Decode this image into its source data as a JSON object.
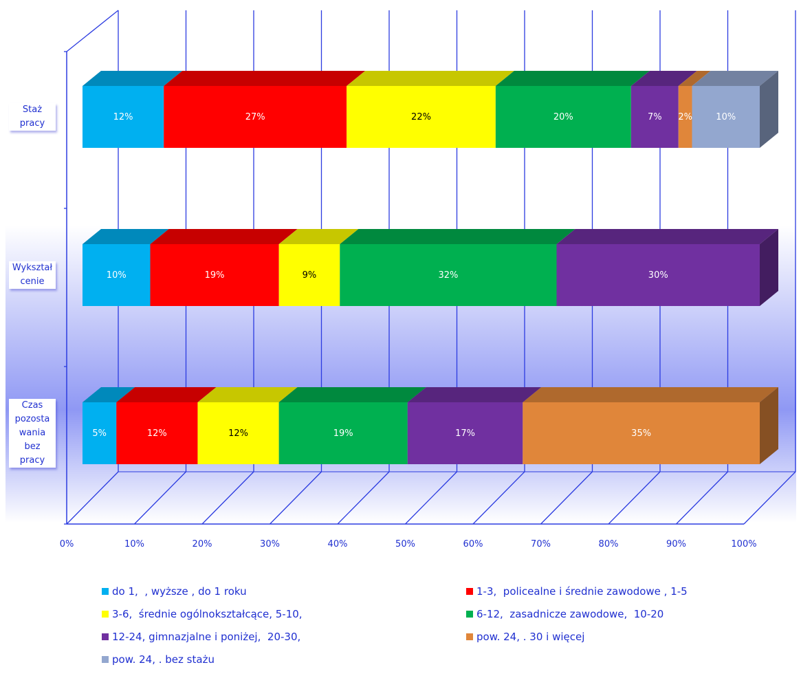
{
  "chart_data": {
    "type": "bar",
    "orientation": "horizontal",
    "stacked": "percent",
    "three_d": true,
    "title": "",
    "xlabel": "",
    "ylabel": "",
    "xlim": [
      0,
      100
    ],
    "x_ticks": [
      "0%",
      "10%",
      "20%",
      "30%",
      "40%",
      "50%",
      "60%",
      "70%",
      "80%",
      "90%",
      "100%"
    ],
    "categories": [
      "Staż pracy",
      "Wykształcenie",
      "Czas pozostawania bez pracy"
    ],
    "category_display": [
      "Staż\npracy",
      "Wykształ\ncenie",
      "Czas\npozosta\nwania\nbez\npracy"
    ],
    "grid": true,
    "legend_position": "bottom",
    "series": [
      {
        "name": "do 1,  , wyższe , do 1 roku",
        "color": "#00b0f0",
        "values": [
          12,
          10,
          5
        ],
        "labels": [
          "12%",
          "10%",
          "5%"
        ]
      },
      {
        "name": "1-3,  policealne i średnie zawodowe , 1-5",
        "color": "#ff0000",
        "values": [
          27,
          19,
          12
        ],
        "labels": [
          "27%",
          "19%",
          "12%"
        ]
      },
      {
        "name": "3-6,  średnie ogólnokształcące, 5-10,",
        "color": "#ffff00",
        "values": [
          22,
          9,
          12
        ],
        "labels": [
          "22%",
          "9%",
          "12%"
        ]
      },
      {
        "name": "6-12,  zasadnicze zawodowe,  10-20",
        "color": "#00b050",
        "values": [
          20,
          32,
          19
        ],
        "labels": [
          "20%",
          "32%",
          "19%"
        ]
      },
      {
        "name": "12-24, gimnazjalne i poniżej,  20-30,",
        "color": "#7030a0",
        "values": [
          7,
          30,
          17
        ],
        "labels": [
          "7%",
          "30%",
          "17%"
        ]
      },
      {
        "name": "pow. 24, . 30 i więcej",
        "color": "#e0863a",
        "values": [
          2,
          0,
          35
        ],
        "labels": [
          "2%",
          "",
          "35%"
        ]
      },
      {
        "name": "pow. 24, . bez stażu",
        "color": "#93a7cf",
        "values": [
          10,
          0,
          0
        ],
        "labels": [
          "10%",
          "",
          ""
        ]
      }
    ]
  }
}
